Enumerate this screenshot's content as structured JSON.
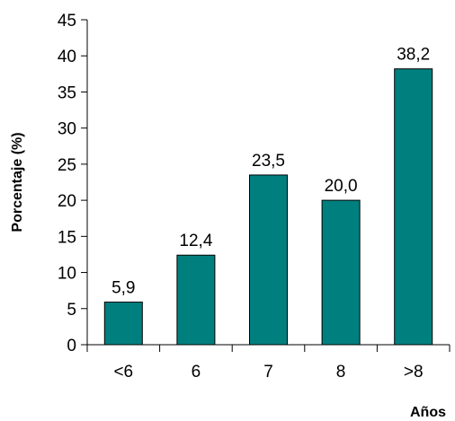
{
  "chart_data": {
    "type": "bar",
    "categories": [
      "<6",
      "6",
      "7",
      "8",
      ">8"
    ],
    "values": [
      5.9,
      12.4,
      23.5,
      20.0,
      38.2
    ],
    "data_labels": [
      "5,9",
      "12,4",
      "23,5",
      "20,0",
      "38,2"
    ],
    "title": "",
    "xlabel": "Años",
    "ylabel": "Porcentaje (%)",
    "ylim": [
      0,
      45
    ],
    "yticks": [
      0,
      5,
      10,
      15,
      20,
      25,
      30,
      35,
      40,
      45
    ],
    "grid": false,
    "legend": "none",
    "bar_color": "#007f7f"
  }
}
